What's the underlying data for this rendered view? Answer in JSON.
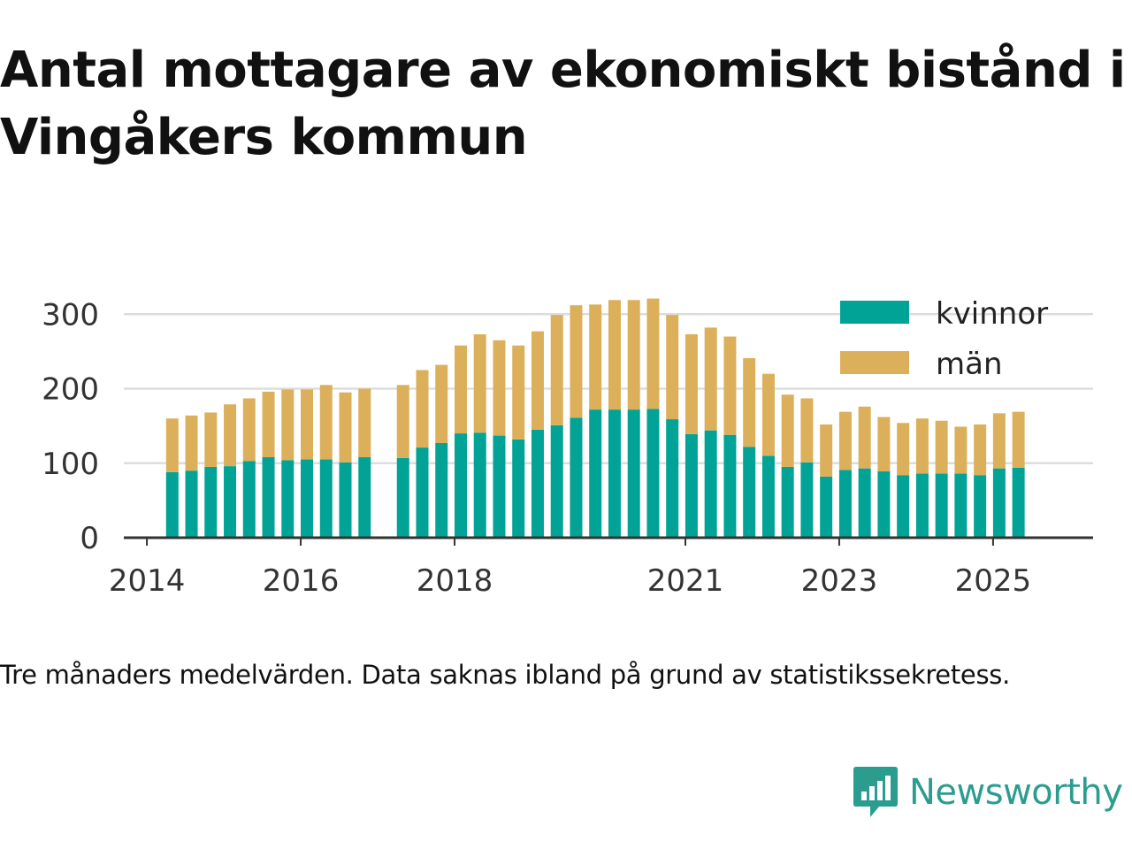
{
  "chart_data": {
    "type": "bar",
    "stacked": true,
    "title": "Antal mottagare av ekonomiskt bistånd i Vingåkers kommun",
    "footnote": "Tre månaders medelvärden. Data saknas ibland på grund av statistikssekretess.",
    "xlabel": "",
    "ylabel": "",
    "ylim": [
      0,
      330
    ],
    "yticks": [
      0,
      100,
      200,
      300
    ],
    "xlim": [
      2013.7,
      2026.3
    ],
    "xticks": [
      2014,
      2016,
      2018,
      2021,
      2023,
      2025
    ],
    "grid": true,
    "legend_position": "top-right",
    "colors": {
      "kvinnor": "#00a396",
      "man": "#dcb05a"
    },
    "x": [
      2014.33,
      2014.58,
      2014.83,
      2015.08,
      2015.33,
      2015.58,
      2015.83,
      2016.08,
      2016.33,
      2016.58,
      2016.83,
      2017.33,
      2017.58,
      2017.83,
      2018.08,
      2018.33,
      2018.58,
      2018.83,
      2019.08,
      2019.33,
      2019.58,
      2019.83,
      2020.08,
      2020.33,
      2020.58,
      2020.83,
      2021.08,
      2021.33,
      2021.58,
      2021.83,
      2022.08,
      2022.33,
      2022.58,
      2022.83,
      2023.08,
      2023.33,
      2023.58,
      2023.83,
      2024.08,
      2024.33,
      2024.58,
      2024.83,
      2025.08,
      2025.33
    ],
    "series": [
      {
        "name": "kvinnor",
        "values": [
          88,
          90,
          95,
          96,
          103,
          108,
          104,
          105,
          105,
          101,
          108,
          107,
          121,
          127,
          140,
          141,
          137,
          132,
          145,
          151,
          161,
          172,
          172,
          172,
          173,
          159,
          139,
          144,
          138,
          122,
          110,
          95,
          101,
          82,
          91,
          93,
          89,
          84,
          86,
          86,
          86,
          84,
          93,
          94
        ]
      },
      {
        "name": "män",
        "values": [
          72,
          74,
          73,
          83,
          84,
          88,
          95,
          94,
          100,
          94,
          92,
          98,
          104,
          105,
          118,
          132,
          128,
          126,
          132,
          148,
          151,
          141,
          147,
          147,
          148,
          140,
          134,
          138,
          132,
          119,
          110,
          97,
          86,
          70,
          78,
          83,
          73,
          70,
          74,
          71,
          63,
          68,
          74,
          75
        ]
      }
    ]
  },
  "legend": {
    "items": [
      {
        "label": "kvinnor"
      },
      {
        "label": "män"
      }
    ]
  },
  "brand": {
    "name": "Newsworthy"
  }
}
